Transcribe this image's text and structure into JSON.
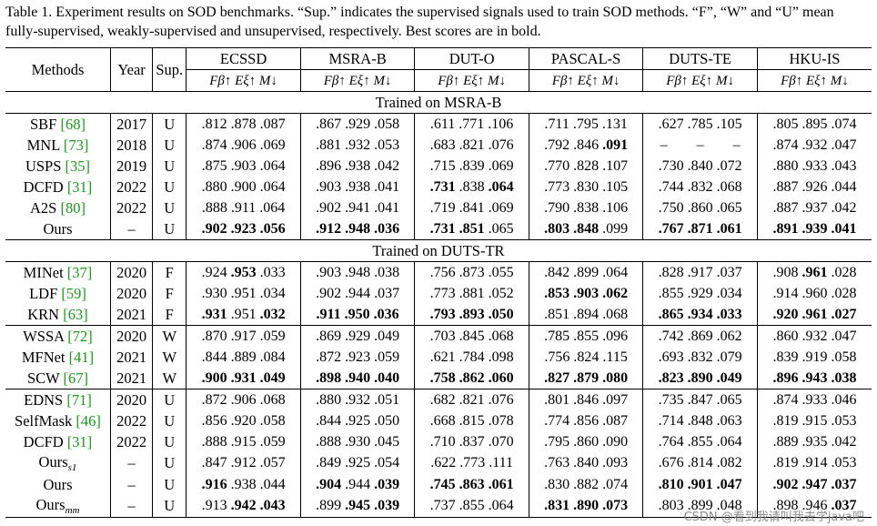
{
  "caption": "Table 1. Experiment results on SOD benchmarks. “Sup.” indicates the supervised signals used to train SOD methods. “F”, “W” and “U” mean fully-supervised, weakly-supervised and unsupervised, respectively. Best scores are in bold.",
  "header": {
    "methods": "Methods",
    "year": "Year",
    "sup": "Sup.",
    "datasets": [
      "ECSSD",
      "MSRA-B",
      "DUT-O",
      "PASCAL-S",
      "DUTS-TE",
      "HKU-IS"
    ],
    "metrics": "Fβ↑ Eξ↑ M↓"
  },
  "sections": [
    {
      "title": "Trained on MSRA-B",
      "groups": [
        [
          {
            "name": "SBF",
            "ref": "[68]",
            "year": "2017",
            "sup": "U",
            "vals": [
              ".812 .878 .087",
              ".867 .929 .058",
              ".611 .771 .106",
              ".711 .795 .131",
              ".627 .785 .105",
              ".805 .895 .074"
            ]
          },
          {
            "name": "MNL",
            "ref": "[73]",
            "year": "2018",
            "sup": "U",
            "vals": [
              ".874 .906 .069",
              ".881 .932 .053",
              ".683 .821 .076",
              ".792 .846 .091",
              "–      –      –",
              ".874 .932 .047"
            ]
          },
          {
            "name": "USPS",
            "ref": "[35]",
            "year": "2019",
            "sup": "U",
            "vals": [
              ".875 .903 .064",
              ".896 .938 .042",
              ".715 .839 .069",
              ".770 .828 .107",
              ".730 .840 .072",
              ".880 .933 .043"
            ]
          },
          {
            "name": "DCFD",
            "ref": "[31]",
            "year": "2022",
            "sup": "U",
            "vals": [
              ".880 .900 .064",
              ".903 .938 .041",
              ".731 .838 .064",
              ".773 .830 .105",
              ".744 .832 .068",
              ".887 .926 .044"
            ]
          },
          {
            "name": "A2S",
            "ref": "[80]",
            "year": "2022",
            "sup": "U",
            "vals": [
              ".888 .911 .064",
              ".902 .941 .041",
              ".719 .841 .069",
              ".790 .838 .106",
              ".750 .860 .065",
              ".887 .937 .042"
            ]
          },
          {
            "name": "Ours",
            "ref": "",
            "year": "–",
            "sup": "U",
            "vals": [
              ".902 .923 .056",
              ".912 .948 .036",
              ".731 .851 .065",
              ".803 .848 .099",
              ".767 .871 .061",
              ".891 .939 .041"
            ]
          }
        ]
      ]
    },
    {
      "title": "Trained on DUTS-TR",
      "groups": [
        [
          {
            "name": "MINet",
            "ref": "[37]",
            "year": "2020",
            "sup": "F",
            "vals": [
              ".924 .953 .033",
              ".903 .948 .038",
              ".756 .873 .055",
              ".842 .899 .064",
              ".828 .917 .037",
              ".908 .961 .028"
            ]
          },
          {
            "name": "LDF",
            "ref": "[59]",
            "year": "2020",
            "sup": "F",
            "vals": [
              ".930 .951 .034",
              ".902 .944 .037",
              ".773 .881 .052",
              ".853 .903 .062",
              ".855 .929 .034",
              ".914 .960 .028"
            ]
          },
          {
            "name": "KRN",
            "ref": "[63]",
            "year": "2021",
            "sup": "F",
            "vals": [
              ".931 .951 .032",
              ".911 .950 .036",
              ".793 .893 .050",
              ".851 .894 .068",
              ".865 .934 .033",
              ".920 .961 .027"
            ]
          }
        ],
        [
          {
            "name": "WSSA",
            "ref": "[72]",
            "year": "2020",
            "sup": "W",
            "vals": [
              ".870 .917 .059",
              ".869 .929 .049",
              ".703 .845 .068",
              ".785 .855 .096",
              ".742 .869 .062",
              ".860 .932 .047"
            ]
          },
          {
            "name": "MFNet",
            "ref": "[41]",
            "year": "2021",
            "sup": "W",
            "vals": [
              ".844 .889 .084",
              ".872 .923 .059",
              ".621 .784 .098",
              ".756 .824 .115",
              ".693 .832 .079",
              ".839 .919 .058"
            ]
          },
          {
            "name": "SCW",
            "ref": "[67]",
            "year": "2021",
            "sup": "W",
            "vals": [
              ".900 .931 .049",
              ".898 .940 .040",
              ".758 .862 .060",
              ".827 .879 .080",
              ".823 .890 .049",
              ".896 .943 .038"
            ]
          }
        ],
        [
          {
            "name": "EDNS",
            "ref": "[71]",
            "year": "2020",
            "sup": "U",
            "vals": [
              ".872 .906 .068",
              ".880 .932 .051",
              ".682 .821 .076",
              ".801 .846 .097",
              ".735 .847 .065",
              ".874 .933 .046"
            ]
          },
          {
            "name": "SelfMask",
            "ref": "[46]",
            "year": "2022",
            "sup": "U",
            "vals": [
              ".856 .920 .058",
              ".844 .925 .050",
              ".668 .815 .078",
              ".774 .856 .087",
              ".714 .848 .063",
              ".819 .915 .053"
            ]
          },
          {
            "name": "DCFD",
            "ref": "[31]",
            "year": "2022",
            "sup": "U",
            "vals": [
              ".888 .915 .059",
              ".888 .930 .045",
              ".710 .837 .070",
              ".795 .860 .090",
              ".764 .855 .064",
              ".889 .935 .042"
            ]
          },
          {
            "name": "Ours",
            "sub": "s1",
            "ref": "",
            "year": "–",
            "sup": "U",
            "vals": [
              ".847 .912 .057",
              ".849 .925 .054",
              ".622 .773 .111",
              ".763 .840 .093",
              ".676 .814 .082",
              ".819 .914 .053"
            ]
          },
          {
            "name": "Ours",
            "ref": "",
            "year": "–",
            "sup": "U",
            "vals": [
              ".916 .938 .044",
              ".904 .944 .039",
              ".745 .863 .061",
              ".830 .882 .074",
              ".810 .901 .047",
              ".902 .947 .037"
            ]
          },
          {
            "name": "Ours",
            "sub": "mm",
            "ref": "",
            "year": "–",
            "sup": "U",
            "vals": [
              ".913 .942 .043",
              ".899 .945 .039",
              ".737 .855 .064",
              ".831 .890 .073",
              ".803 .899 .048",
              ".898 .946 .037"
            ]
          }
        ]
      ]
    }
  ],
  "bold": {
    "0-0-5": [
      [
        0,
        1,
        2
      ],
      [
        0,
        1,
        2
      ],
      [
        0,
        1
      ],
      [
        0,
        1
      ],
      [
        0,
        1,
        2
      ],
      [
        0,
        1,
        2
      ]
    ],
    "0-0-1": [
      [],
      [],
      [],
      [
        2
      ],
      [],
      []
    ],
    "0-0-3": [
      [],
      [],
      [
        0,
        2
      ],
      [],
      [],
      []
    ],
    "1-0-0": [
      [
        1
      ],
      [],
      [],
      [],
      [],
      [
        1
      ]
    ],
    "1-0-1": [
      [],
      [],
      [],
      [
        0,
        1,
        2
      ],
      [],
      []
    ],
    "1-0-2": [
      [
        0,
        2
      ],
      [
        0,
        1,
        2
      ],
      [
        0,
        1,
        2
      ],
      [],
      [
        0,
        1,
        2
      ],
      [
        0,
        1,
        2
      ]
    ],
    "1-1-2": [
      [
        0,
        1,
        2
      ],
      [
        0,
        1,
        2
      ],
      [
        0,
        1,
        2
      ],
      [
        0,
        1,
        2
      ],
      [
        0,
        1,
        2
      ],
      [
        0,
        1,
        2
      ]
    ],
    "1-2-4": [
      [
        0
      ],
      [
        0,
        2
      ],
      [
        0,
        1,
        2
      ],
      [],
      [
        0,
        1,
        2
      ],
      [
        0,
        1,
        2
      ]
    ],
    "1-2-5": [
      [
        1,
        2
      ],
      [
        1,
        2
      ],
      [],
      [
        0,
        1,
        2
      ],
      [],
      [
        2
      ]
    ]
  },
  "watermark": "CSDN @看到我请叫我去学java吧"
}
